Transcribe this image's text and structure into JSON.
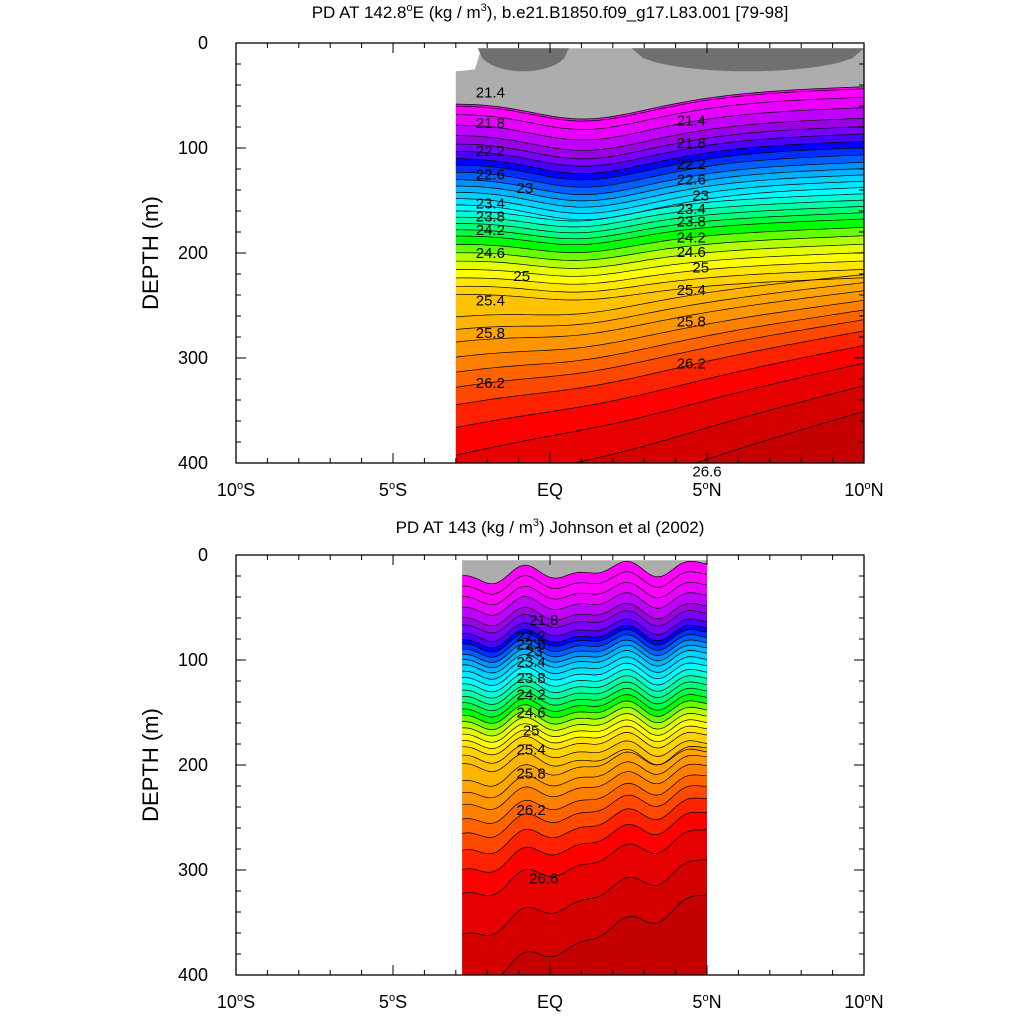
{
  "chart_data": [
    {
      "type": "contour",
      "title": "PD AT 142.8°E (kg / m³), b.e21.B1850.f09_g17.L83.001 [79-98]",
      "title_parts": {
        "pre": "PD AT 142.8",
        "deg": "o",
        "mid": "E (kg / m",
        "sup": "3",
        "post": "), b.e21.B1850.f09_g17.L83.001 [79-98]"
      },
      "ylabel": "DEPTH (m)",
      "xlabel": "",
      "x_ticks": [
        {
          "value": -10,
          "text": "10",
          "deg": "o",
          "hem": "S"
        },
        {
          "value": -5,
          "text": "5",
          "deg": "o",
          "hem": "S"
        },
        {
          "value": 0,
          "text": "EQ",
          "deg": "",
          "hem": ""
        },
        {
          "value": 5,
          "text": "5",
          "deg": "o",
          "hem": "N"
        },
        {
          "value": 10,
          "text": "10",
          "deg": "o",
          "hem": "N"
        }
      ],
      "xlim": [
        -10,
        10
      ],
      "y_ticks": [
        0,
        100,
        200,
        300,
        400
      ],
      "ylim": [
        0,
        400
      ],
      "data_xrange": [
        -3,
        10
      ],
      "grey_top_depth_at_edges": [
        27,
        5
      ],
      "contour_labels": [
        {
          "text": "21.4",
          "x": -1.9,
          "depth": 47
        },
        {
          "text": "21.8",
          "x": -1.9,
          "depth": 76
        },
        {
          "text": "22.2",
          "x": -1.9,
          "depth": 103
        },
        {
          "text": "22.6",
          "x": -1.9,
          "depth": 125
        },
        {
          "text": "23",
          "x": -0.8,
          "depth": 138
        },
        {
          "text": "23.4",
          "x": -1.9,
          "depth": 153
        },
        {
          "text": "23.8",
          "x": -1.9,
          "depth": 165
        },
        {
          "text": "24.2",
          "x": -1.9,
          "depth": 178
        },
        {
          "text": "24.6",
          "x": -1.9,
          "depth": 200
        },
        {
          "text": "25",
          "x": -0.9,
          "depth": 222
        },
        {
          "text": "25.4",
          "x": -1.9,
          "depth": 245
        },
        {
          "text": "25.8",
          "x": -1.9,
          "depth": 276
        },
        {
          "text": "26.2",
          "x": -1.9,
          "depth": 324
        },
        {
          "text": "21.4",
          "x": 4.5,
          "depth": 74
        },
        {
          "text": "21.8",
          "x": 4.5,
          "depth": 95
        },
        {
          "text": "22.2",
          "x": 4.5,
          "depth": 115
        },
        {
          "text": "22.6",
          "x": 4.5,
          "depth": 130
        },
        {
          "text": "23",
          "x": 4.8,
          "depth": 145
        },
        {
          "text": "23.4",
          "x": 4.5,
          "depth": 158
        },
        {
          "text": "23.8",
          "x": 4.5,
          "depth": 170
        },
        {
          "text": "24.2",
          "x": 4.5,
          "depth": 185
        },
        {
          "text": "24.6",
          "x": 4.5,
          "depth": 199
        },
        {
          "text": "25",
          "x": 4.8,
          "depth": 214
        },
        {
          "text": "25.4",
          "x": 4.5,
          "depth": 235
        },
        {
          "text": "25.8",
          "x": 4.5,
          "depth": 265
        },
        {
          "text": "26.2",
          "x": 4.5,
          "depth": 305
        },
        {
          "text": "26.6",
          "x": 5.0,
          "depth": 408
        }
      ]
    },
    {
      "type": "contour",
      "title": "PD AT 143 (kg / m³) Johnson et al (2002)",
      "title_parts": {
        "pre": "PD AT 143 (kg / m",
        "deg": "",
        "mid": "",
        "sup": "3",
        "post": ") Johnson et al (2002)"
      },
      "ylabel": "DEPTH (m)",
      "xlabel": "",
      "x_ticks": [
        {
          "value": -10,
          "text": "10",
          "deg": "o",
          "hem": "S"
        },
        {
          "value": -5,
          "text": "5",
          "deg": "o",
          "hem": "S"
        },
        {
          "value": 0,
          "text": "EQ",
          "deg": "",
          "hem": ""
        },
        {
          "value": 5,
          "text": "5",
          "deg": "o",
          "hem": "N"
        },
        {
          "value": 10,
          "text": "10",
          "deg": "o",
          "hem": "N"
        }
      ],
      "xlim": [
        -10,
        10
      ],
      "y_ticks": [
        0,
        100,
        200,
        300,
        400
      ],
      "ylim": [
        0,
        400
      ],
      "data_xrange": [
        -2.8,
        5
      ],
      "contour_labels": [
        {
          "text": "21.8",
          "x": -0.2,
          "depth": 62
        },
        {
          "text": "22.2",
          "x": -0.6,
          "depth": 77
        },
        {
          "text": "22.6",
          "x": -0.6,
          "depth": 85
        },
        {
          "text": "23",
          "x": -0.5,
          "depth": 92
        },
        {
          "text": "23.4",
          "x": -0.6,
          "depth": 102
        },
        {
          "text": "23.8",
          "x": -0.6,
          "depth": 117
        },
        {
          "text": "24.2",
          "x": -0.6,
          "depth": 133
        },
        {
          "text": "24.6",
          "x": -0.6,
          "depth": 150
        },
        {
          "text": "25",
          "x": -0.6,
          "depth": 167
        },
        {
          "text": "25.4",
          "x": -0.6,
          "depth": 185
        },
        {
          "text": "25.8",
          "x": -0.6,
          "depth": 208
        },
        {
          "text": "26.2",
          "x": -0.6,
          "depth": 243
        },
        {
          "text": "26.6",
          "x": -0.2,
          "depth": 308
        }
      ]
    }
  ],
  "colors": {
    "contour_fills": [
      "#adadad",
      "#ff00ff",
      "#ff00ff",
      "#e800ff",
      "#c000ff",
      "#9a00e6",
      "#7a00ff",
      "#4a00ff",
      "#0000ff",
      "#0030ff",
      "#0060ff",
      "#0090ff",
      "#00b4ff",
      "#00d2ff",
      "#00e6ff",
      "#00ffff",
      "#00ffd2",
      "#00ffa6",
      "#00ff7a",
      "#00ff40",
      "#00ff00",
      "#66ff00",
      "#b4ff00",
      "#e6ff00",
      "#ffff00",
      "#ffe600",
      "#ffd200",
      "#ffc200",
      "#ffb400",
      "#ffa400",
      "#ff9600",
      "#ff8000",
      "#ff6400",
      "#ff4800",
      "#ff2200",
      "#ff0000",
      "#e60000",
      "#d40000",
      "#c40000"
    ],
    "dark_grey": "#707070"
  }
}
